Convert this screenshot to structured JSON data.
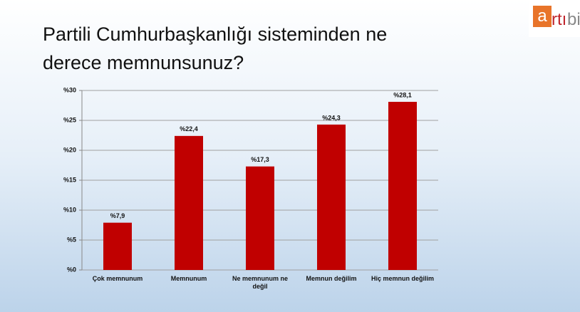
{
  "logo": [
    "a",
    "rtı",
    "bir"
  ],
  "chart_data": {
    "type": "bar",
    "title": "Partili Cumhurbaşkanlığı sisteminden ne derece memnunsunuz?",
    "categories": [
      "Çok memnunum",
      "Memnunum",
      "Ne memnunum ne değil",
      "Memnun değilim",
      "Hiç memnun değilim"
    ],
    "values": [
      7.9,
      22.4,
      17.3,
      24.3,
      28.1
    ],
    "value_labels": [
      "%7,9",
      "%22,4",
      "%17,3",
      "%24,3",
      "%28,1"
    ],
    "color": "#c00000",
    "ylim": [
      0,
      30
    ],
    "yticks": [
      {
        "value": 0,
        "label": "%0"
      },
      {
        "value": 5,
        "label": "%5"
      },
      {
        "value": 10,
        "label": "%10"
      },
      {
        "value": 15,
        "label": "%15"
      },
      {
        "value": 20,
        "label": "%20"
      },
      {
        "value": 25,
        "label": "%25"
      },
      {
        "value": 30,
        "label": "%30"
      }
    ],
    "grid": true
  }
}
